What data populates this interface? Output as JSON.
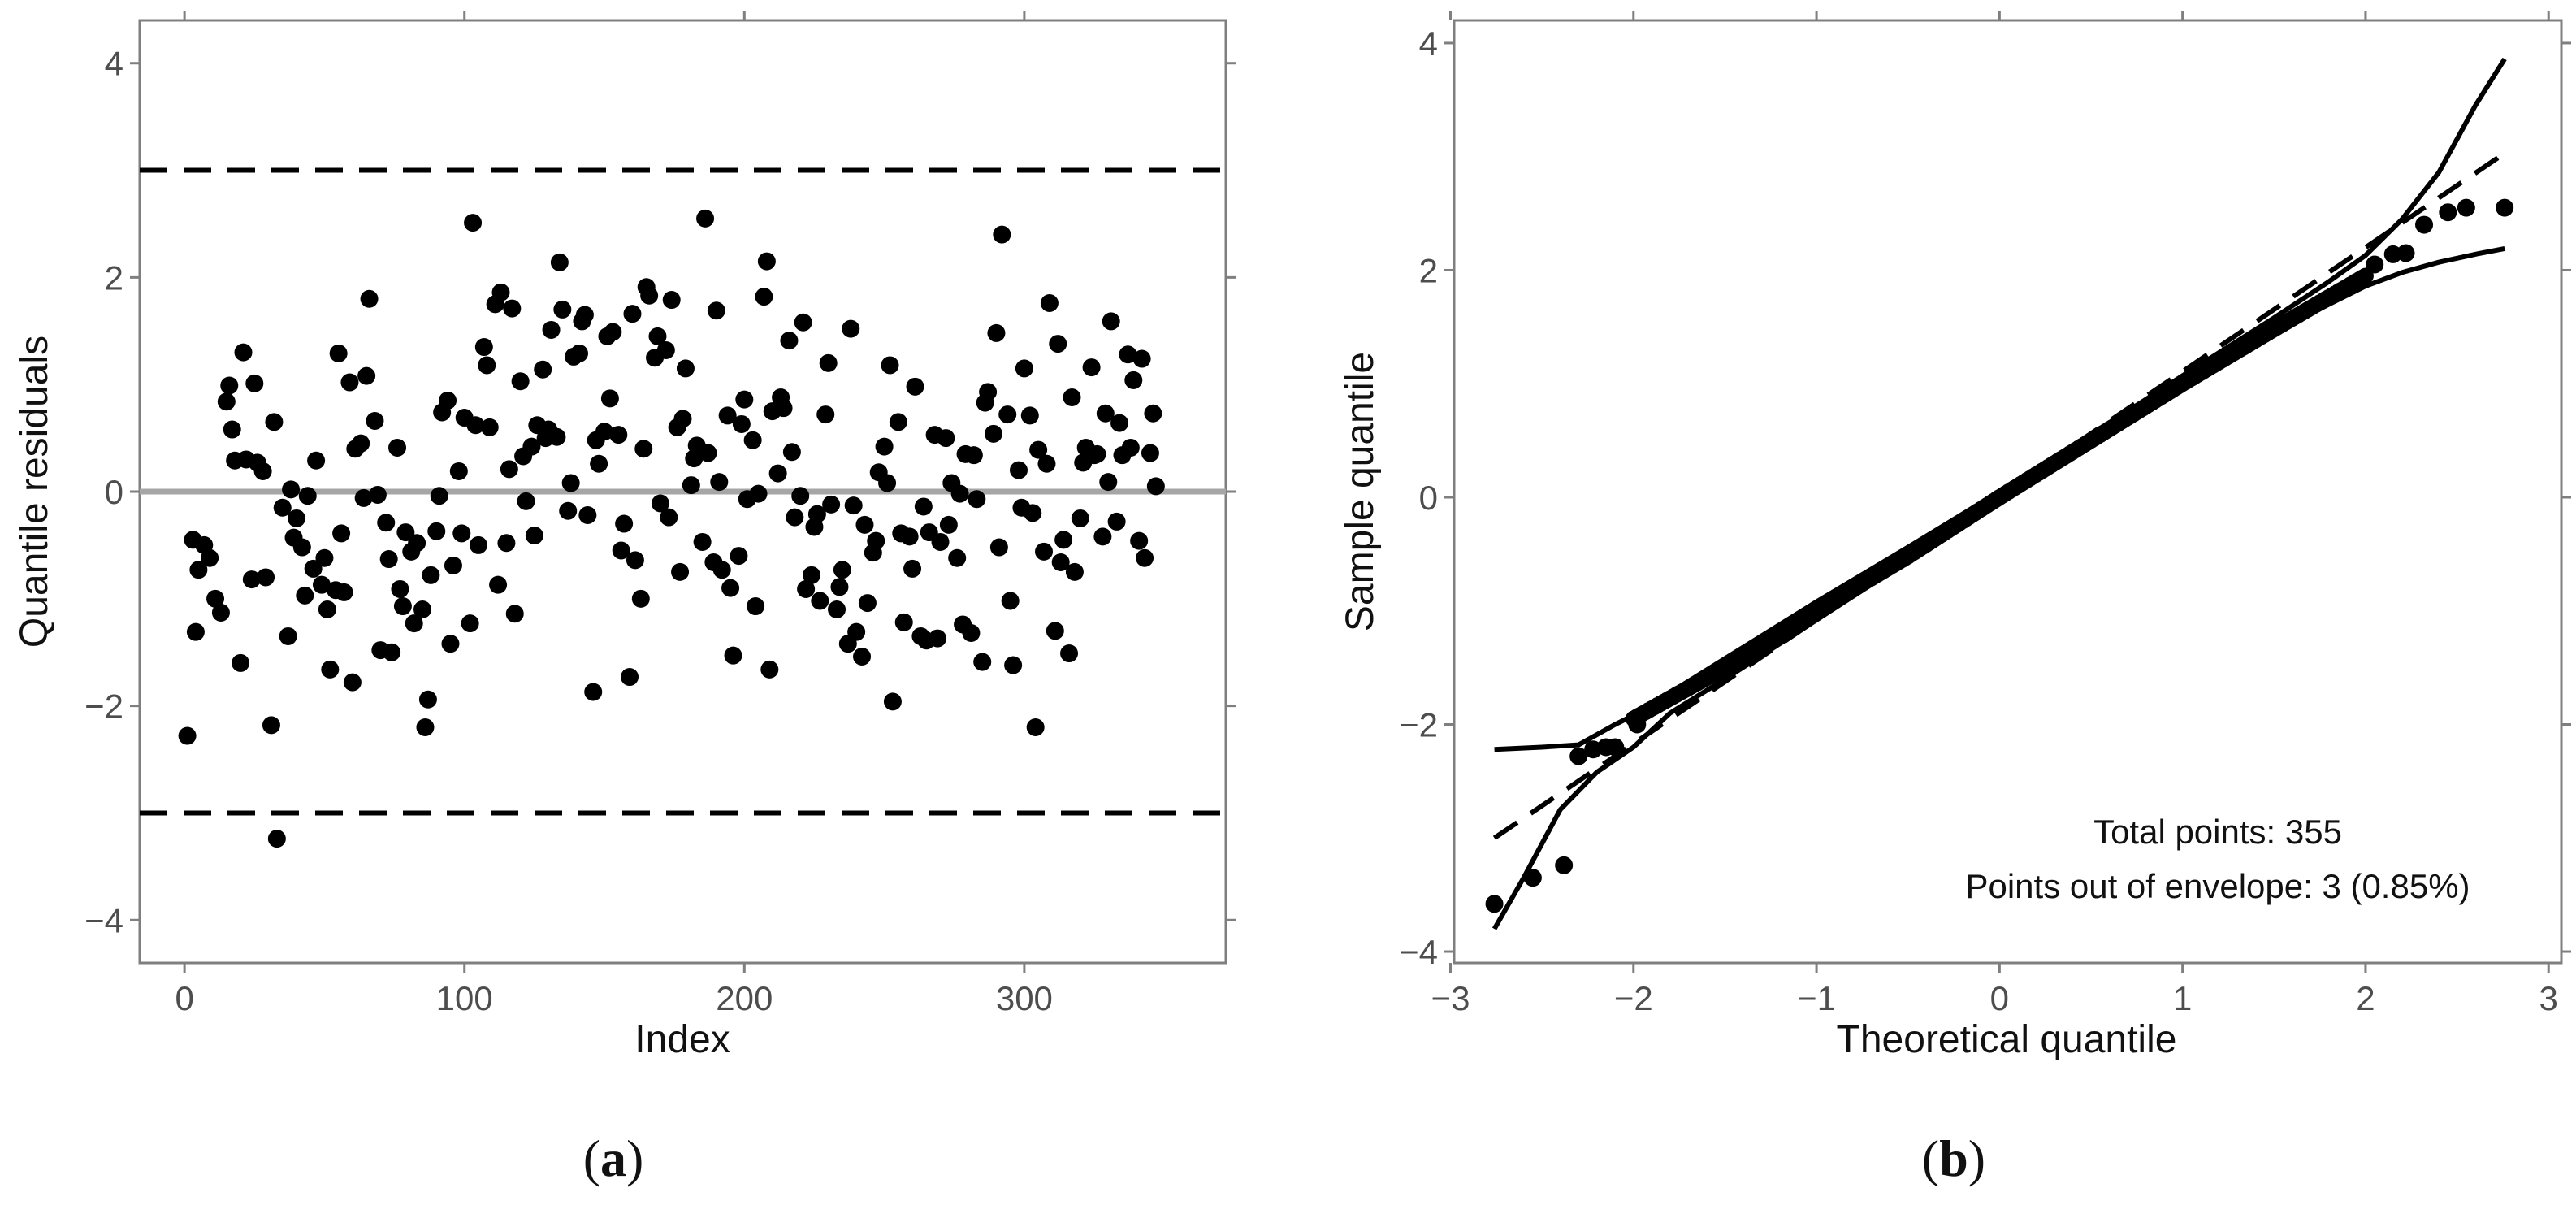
{
  "colors": {
    "points": "#000000",
    "zero_line": "#a6a6a6",
    "frame": "#7f7f7f",
    "tick_text": "#4d4d4d"
  },
  "chart_data": [
    {
      "panel_label": "(a)",
      "panel_letter": "a",
      "type": "scatter",
      "xlabel": "Index",
      "ylabel": "Quantile residuals",
      "xlim": [
        -16,
        372
      ],
      "ylim": [
        -4.4,
        4.4
      ],
      "xticks": [
        0,
        100,
        200,
        300
      ],
      "xtick_labels": [
        "0",
        "100",
        "200",
        "300"
      ],
      "yticks": [
        -4,
        -2,
        0,
        2,
        4
      ],
      "ytick_labels": [
        "−4",
        "−2",
        "0",
        "2",
        "4"
      ],
      "grid": false,
      "hlines": [
        {
          "y": 3,
          "style": "dashed",
          "color": "#000000"
        },
        {
          "y": -3,
          "style": "dashed",
          "color": "#000000"
        },
        {
          "y": 0,
          "style": "solid",
          "color": "#a6a6a6"
        }
      ],
      "n_points": 355,
      "points": [
        [
          1,
          -2.28
        ],
        [
          3,
          -0.45
        ],
        [
          4,
          -1.31
        ],
        [
          5,
          -0.73
        ],
        [
          7,
          -0.5
        ],
        [
          9,
          -0.62
        ],
        [
          11,
          -1.0
        ],
        [
          13,
          -1.13
        ],
        [
          15,
          0.84
        ],
        [
          16,
          0.99
        ],
        [
          17,
          0.58
        ],
        [
          18,
          0.29
        ],
        [
          20,
          -1.6
        ],
        [
          21,
          1.3
        ],
        [
          22,
          0.3
        ],
        [
          24,
          -0.82
        ],
        [
          25,
          1.01
        ],
        [
          26,
          0.27
        ],
        [
          28,
          0.19
        ],
        [
          29,
          -0.8
        ],
        [
          31,
          -2.18
        ],
        [
          32,
          0.65
        ],
        [
          33,
          -3.24
        ],
        [
          35,
          -0.15
        ],
        [
          37,
          -1.35
        ],
        [
          38,
          0.02
        ],
        [
          39,
          -0.43
        ],
        [
          40,
          -0.25
        ],
        [
          42,
          -0.52
        ],
        [
          43,
          -0.97
        ],
        [
          44,
          -0.04
        ],
        [
          46,
          -0.72
        ],
        [
          47,
          0.29
        ],
        [
          49,
          -0.87
        ],
        [
          50,
          -0.62
        ],
        [
          51,
          -1.1
        ],
        [
          52,
          -1.66
        ],
        [
          54,
          -0.92
        ],
        [
          55,
          1.29
        ],
        [
          56,
          -0.39
        ],
        [
          57,
          -0.94
        ],
        [
          59,
          1.02
        ],
        [
          60,
          -1.78
        ],
        [
          61,
          0.4
        ],
        [
          63,
          0.45
        ],
        [
          64,
          -0.06
        ],
        [
          65,
          1.08
        ],
        [
          66,
          1.8
        ],
        [
          68,
          0.66
        ],
        [
          69,
          -0.03
        ],
        [
          70,
          -1.48
        ],
        [
          72,
          -0.29
        ],
        [
          73,
          -0.63
        ],
        [
          74,
          -1.5
        ],
        [
          76,
          0.41
        ],
        [
          77,
          -0.91
        ],
        [
          78,
          -1.07
        ],
        [
          79,
          -0.38
        ],
        [
          81,
          -0.56
        ],
        [
          82,
          -1.23
        ],
        [
          83,
          -0.48
        ],
        [
          85,
          -1.1
        ],
        [
          86,
          -2.2
        ],
        [
          87,
          -1.94
        ],
        [
          88,
          -0.78
        ],
        [
          90,
          -0.37
        ],
        [
          91,
          -0.04
        ],
        [
          92,
          0.74
        ],
        [
          94,
          0.85
        ],
        [
          95,
          -1.42
        ],
        [
          96,
          -0.69
        ],
        [
          98,
          0.19
        ],
        [
          99,
          -0.39
        ],
        [
          100,
          0.69
        ],
        [
          102,
          -1.23
        ],
        [
          103,
          2.51
        ],
        [
          104,
          0.62
        ],
        [
          105,
          -0.5
        ],
        [
          107,
          1.35
        ],
        [
          108,
          1.18
        ],
        [
          109,
          0.6
        ],
        [
          111,
          1.75
        ],
        [
          112,
          -0.87
        ],
        [
          113,
          1.86
        ],
        [
          115,
          -0.48
        ],
        [
          116,
          0.21
        ],
        [
          117,
          1.71
        ],
        [
          118,
          -1.14
        ],
        [
          120,
          1.03
        ],
        [
          121,
          0.33
        ],
        [
          122,
          -0.09
        ],
        [
          124,
          0.42
        ],
        [
          125,
          -0.41
        ],
        [
          126,
          0.62
        ],
        [
          128,
          1.14
        ],
        [
          129,
          0.5
        ],
        [
          130,
          0.58
        ],
        [
          131,
          1.51
        ],
        [
          133,
          0.51
        ],
        [
          134,
          2.14
        ],
        [
          135,
          1.7
        ],
        [
          137,
          -0.18
        ],
        [
          138,
          0.08
        ],
        [
          139,
          1.26
        ],
        [
          141,
          1.29
        ],
        [
          142,
          1.59
        ],
        [
          143,
          1.65
        ],
        [
          144,
          -0.22
        ],
        [
          146,
          -1.87
        ],
        [
          147,
          0.48
        ],
        [
          148,
          0.26
        ],
        [
          150,
          0.56
        ],
        [
          151,
          1.45
        ],
        [
          152,
          0.87
        ],
        [
          153,
          1.49
        ],
        [
          155,
          0.53
        ],
        [
          156,
          -0.55
        ],
        [
          157,
          -0.3
        ],
        [
          159,
          -1.73
        ],
        [
          160,
          1.66
        ],
        [
          161,
          -0.64
        ],
        [
          163,
          -1.0
        ],
        [
          164,
          0.4
        ],
        [
          165,
          1.91
        ],
        [
          166,
          1.83
        ],
        [
          168,
          1.25
        ],
        [
          169,
          1.45
        ],
        [
          170,
          -0.11
        ],
        [
          172,
          1.32
        ],
        [
          173,
          -0.24
        ],
        [
          174,
          1.79
        ],
        [
          176,
          0.6
        ],
        [
          177,
          -0.75
        ],
        [
          178,
          0.68
        ],
        [
          179,
          1.15
        ],
        [
          181,
          0.06
        ],
        [
          182,
          0.31
        ],
        [
          183,
          0.43
        ],
        [
          185,
          -0.47
        ],
        [
          186,
          2.55
        ],
        [
          187,
          0.36
        ],
        [
          189,
          -0.66
        ],
        [
          190,
          1.69
        ],
        [
          191,
          0.09
        ],
        [
          192,
          -0.73
        ],
        [
          194,
          0.71
        ],
        [
          195,
          -0.9
        ],
        [
          196,
          -1.53
        ],
        [
          198,
          -0.6
        ],
        [
          199,
          0.63
        ],
        [
          200,
          0.86
        ],
        [
          201,
          -0.07
        ],
        [
          203,
          0.48
        ],
        [
          204,
          -1.07
        ],
        [
          205,
          -0.02
        ],
        [
          207,
          1.82
        ],
        [
          208,
          2.15
        ],
        [
          209,
          -1.66
        ],
        [
          210,
          0.75
        ],
        [
          212,
          0.17
        ],
        [
          213,
          0.88
        ],
        [
          214,
          0.78
        ],
        [
          216,
          1.41
        ],
        [
          217,
          0.37
        ],
        [
          218,
          -0.24
        ],
        [
          220,
          -0.04
        ],
        [
          221,
          1.58
        ],
        [
          222,
          -0.91
        ],
        [
          224,
          -0.78
        ],
        [
          225,
          -0.33
        ],
        [
          226,
          -0.21
        ],
        [
          227,
          -1.02
        ],
        [
          229,
          0.72
        ],
        [
          230,
          1.2
        ],
        [
          231,
          -0.12
        ],
        [
          233,
          -1.1
        ],
        [
          234,
          -0.89
        ],
        [
          235,
          -0.73
        ],
        [
          237,
          -1.42
        ],
        [
          238,
          1.52
        ],
        [
          239,
          -0.13
        ],
        [
          240,
          -1.31
        ],
        [
          242,
          -1.54
        ],
        [
          243,
          -0.31
        ],
        [
          244,
          -1.04
        ],
        [
          246,
          -0.57
        ],
        [
          247,
          -0.46
        ],
        [
          248,
          0.18
        ],
        [
          250,
          0.42
        ],
        [
          251,
          0.08
        ],
        [
          252,
          1.18
        ],
        [
          253,
          -1.96
        ],
        [
          255,
          0.65
        ],
        [
          256,
          -0.39
        ],
        [
          257,
          -1.22
        ],
        [
          259,
          -0.42
        ],
        [
          260,
          -0.72
        ],
        [
          261,
          0.98
        ],
        [
          263,
          -1.35
        ],
        [
          264,
          -0.14
        ],
        [
          265,
          -1.39
        ],
        [
          266,
          -0.38
        ],
        [
          268,
          0.53
        ],
        [
          269,
          -1.37
        ],
        [
          270,
          -0.47
        ],
        [
          272,
          0.5
        ],
        [
          273,
          -0.31
        ],
        [
          274,
          0.08
        ],
        [
          276,
          -0.62
        ],
        [
          277,
          -0.02
        ],
        [
          278,
          -1.24
        ],
        [
          279,
          0.35
        ],
        [
          281,
          -1.32
        ],
        [
          282,
          0.34
        ],
        [
          283,
          -0.07
        ],
        [
          285,
          -1.59
        ],
        [
          286,
          0.83
        ],
        [
          287,
          0.93
        ],
        [
          289,
          0.54
        ],
        [
          290,
          1.48
        ],
        [
          291,
          -0.52
        ],
        [
          292,
          2.4
        ],
        [
          294,
          0.72
        ],
        [
          295,
          -1.02
        ],
        [
          296,
          -1.62
        ],
        [
          298,
          0.2
        ],
        [
          299,
          -0.15
        ],
        [
          300,
          1.15
        ],
        [
          302,
          0.71
        ],
        [
          303,
          -0.2
        ],
        [
          304,
          -2.2
        ],
        [
          305,
          0.39
        ],
        [
          307,
          -0.56
        ],
        [
          308,
          0.26
        ],
        [
          309,
          1.76
        ],
        [
          311,
          -1.3
        ],
        [
          312,
          1.38
        ],
        [
          313,
          -0.66
        ],
        [
          314,
          -0.45
        ],
        [
          316,
          -1.51
        ],
        [
          317,
          0.88
        ],
        [
          318,
          -0.75
        ],
        [
          320,
          -0.25
        ],
        [
          321,
          0.27
        ],
        [
          322,
          0.41
        ],
        [
          324,
          1.16
        ],
        [
          325,
          0.34
        ],
        [
          326,
          0.35
        ],
        [
          328,
          -0.42
        ],
        [
          329,
          0.73
        ],
        [
          330,
          0.09
        ],
        [
          331,
          1.59
        ],
        [
          333,
          -0.28
        ],
        [
          334,
          0.64
        ],
        [
          335,
          0.34
        ],
        [
          337,
          1.28
        ],
        [
          338,
          0.41
        ],
        [
          339,
          1.04
        ],
        [
          341,
          -0.46
        ],
        [
          342,
          1.24
        ],
        [
          343,
          -0.62
        ],
        [
          345,
          0.36
        ],
        [
          346,
          0.73
        ],
        [
          347,
          0.05
        ]
      ]
    },
    {
      "panel_label": "(b)",
      "panel_letter": "b",
      "type": "line",
      "xlabel": "Theoretical quantile",
      "ylabel": "Sample quantile",
      "xlim": [
        -2.98,
        3.07
      ],
      "ylim": [
        -4.1,
        4.2
      ],
      "xticks": [
        -3,
        -2,
        -1,
        0,
        1,
        2,
        3
      ],
      "xtick_labels": [
        "−3",
        "−2",
        "−1",
        "0",
        "1",
        "2",
        "3"
      ],
      "yticks": [
        -4,
        -2,
        0,
        2,
        4
      ],
      "ytick_labels": [
        "−4",
        "−2",
        "0",
        "2",
        "4"
      ],
      "grid": false,
      "annotations": [
        "Total points: 355",
        "Points out of envelope: 3 (0.85%)"
      ],
      "annotation_position": "bottom-right",
      "reference_line": {
        "style": "dashed",
        "x": [
          -2.76,
          2.76
        ],
        "y": [
          -3.0,
          3.03
        ]
      },
      "envelope_upper": {
        "style": "solid",
        "x": [
          -2.76,
          -2.5,
          -2.3,
          -2.1,
          -2.0,
          -1.8,
          -1.5,
          -1.0,
          -0.5,
          0.0,
          0.5,
          1.0,
          1.5,
          1.8,
          2.0,
          2.2,
          2.4,
          2.6,
          2.76
        ],
        "y": [
          -2.22,
          -2.2,
          -2.18,
          -2.0,
          -1.92,
          -1.72,
          -1.42,
          -0.92,
          -0.44,
          0.05,
          0.55,
          1.07,
          1.58,
          1.9,
          2.13,
          2.45,
          2.86,
          3.45,
          3.86
        ]
      },
      "envelope_lower": {
        "style": "solid",
        "x": [
          -2.76,
          -2.6,
          -2.4,
          -2.2,
          -2.0,
          -1.8,
          -1.5,
          -1.0,
          -0.5,
          0.0,
          0.5,
          1.0,
          1.5,
          1.8,
          2.0,
          2.2,
          2.4,
          2.6,
          2.76
        ],
        "y": [
          -3.8,
          -3.35,
          -2.75,
          -2.42,
          -2.2,
          -1.9,
          -1.6,
          -1.08,
          -0.56,
          -0.06,
          0.46,
          0.96,
          1.45,
          1.7,
          1.86,
          1.98,
          2.07,
          2.14,
          2.19
        ]
      },
      "sample_points_outside": [
        [
          -2.76,
          -3.58
        ],
        [
          -2.55,
          -3.35
        ],
        [
          -2.38,
          -3.24
        ]
      ],
      "sample_points_low": [
        [
          -2.3,
          -2.28
        ],
        [
          -2.22,
          -2.22
        ],
        [
          -2.15,
          -2.2
        ],
        [
          -2.1,
          -2.2
        ],
        [
          -1.98,
          -2.0
        ]
      ],
      "sample_points_high": [
        [
          2.05,
          2.05
        ],
        [
          2.15,
          2.14
        ],
        [
          2.22,
          2.15
        ],
        [
          2.32,
          2.4
        ],
        [
          2.45,
          2.51
        ],
        [
          2.55,
          2.55
        ],
        [
          2.76,
          2.55
        ]
      ],
      "sample_curve": {
        "x": [
          -2.0,
          -1.5,
          -1.0,
          -0.5,
          0.0,
          0.5,
          1.0,
          1.5,
          2.0
        ],
        "y": [
          -1.95,
          -1.5,
          -1.0,
          -0.52,
          0.0,
          0.5,
          1.0,
          1.48,
          1.95
        ]
      }
    }
  ]
}
